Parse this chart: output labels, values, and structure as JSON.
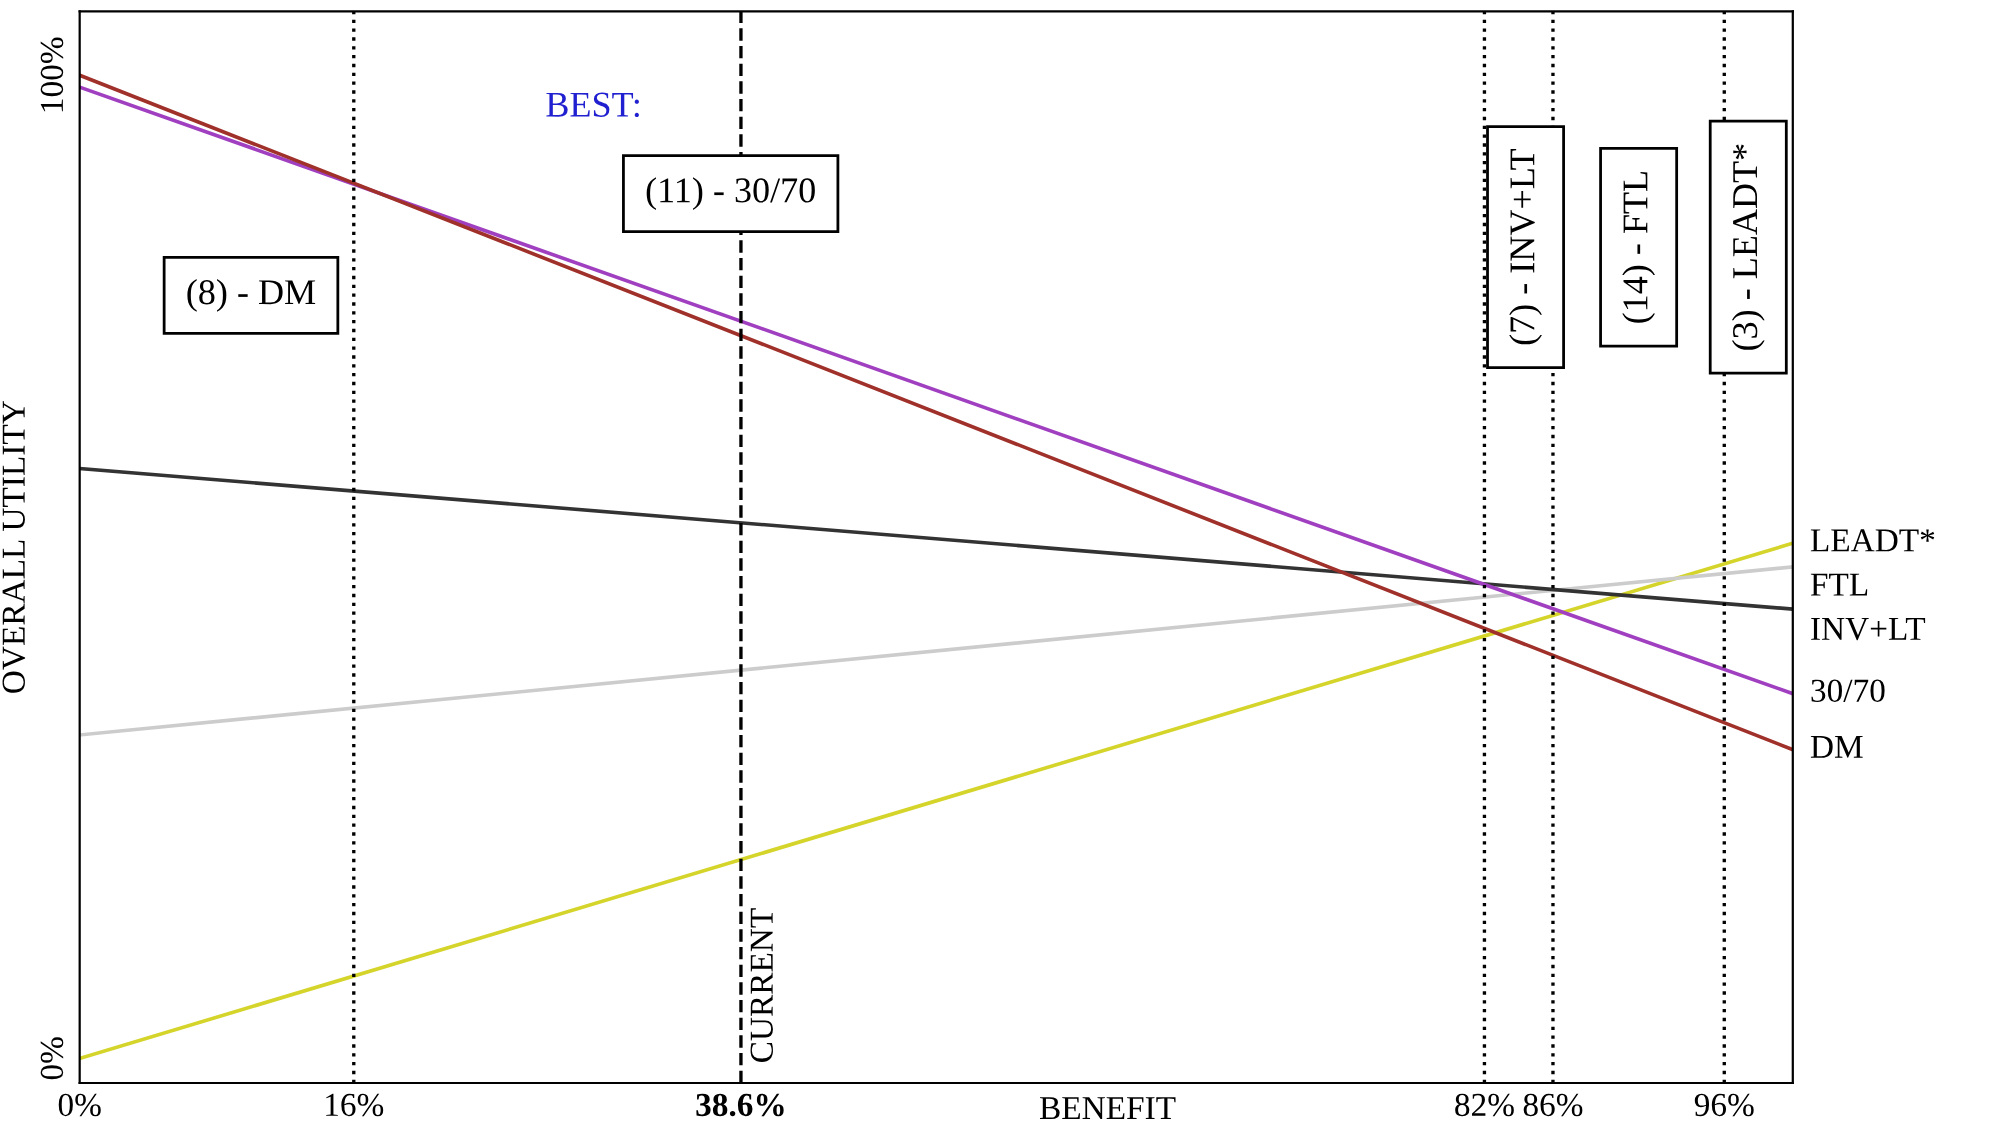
{
  "chart_data": {
    "type": "line",
    "xlabel": "BENEFIT",
    "ylabel": "OVERALL UTILITY",
    "x": [
      0,
      100
    ],
    "series": [
      {
        "name": "LEADT*",
        "color": "#d4d42a",
        "values": [
          0,
          52.4
        ]
      },
      {
        "name": "FTL",
        "color": "#cccccc",
        "values": [
          32.9,
          50
        ]
      },
      {
        "name": "INV+LT",
        "color": "#333333",
        "values": [
          60,
          45.7
        ]
      },
      {
        "name": "30/70",
        "color": "#a040c0",
        "values": [
          98.8,
          37.1
        ]
      },
      {
        "name": "DM",
        "color": "#a0302a",
        "values": [
          100,
          31.4
        ]
      }
    ],
    "xlim": [
      0,
      100
    ],
    "ylim": [
      -2.5,
      106.5
    ],
    "xticks": [
      {
        "value": 0,
        "label": "0%"
      },
      {
        "value": 16,
        "label": "16%"
      },
      {
        "value": 38.6,
        "label": "38.6%"
      },
      {
        "value": 82,
        "label": "82%"
      },
      {
        "value": 86,
        "label": "86%"
      },
      {
        "value": 96,
        "label": "96%"
      }
    ],
    "yticks": [
      {
        "value": 0,
        "label": "0%"
      },
      {
        "value": 100,
        "label": "100%"
      }
    ],
    "ref_lines": [
      {
        "axis": "x",
        "value": 16,
        "line_style": "dotted"
      },
      {
        "axis": "x",
        "value": 38.6,
        "line_style": "dashed",
        "label": "CURRENT"
      },
      {
        "axis": "x",
        "value": 82,
        "line_style": "dotted"
      },
      {
        "axis": "x",
        "value": 86,
        "line_style": "dotted"
      },
      {
        "axis": "x",
        "value": 96,
        "line_style": "dotted"
      }
    ],
    "annotations": [
      "(8) - DM",
      "BEST:",
      "(11) - 30/70",
      "(7) - INV+LT",
      "(14) - FTL",
      "(3) - LEADT*"
    ],
    "legend": false,
    "grid": false,
    "line_style": "solid",
    "marker": "none"
  }
}
